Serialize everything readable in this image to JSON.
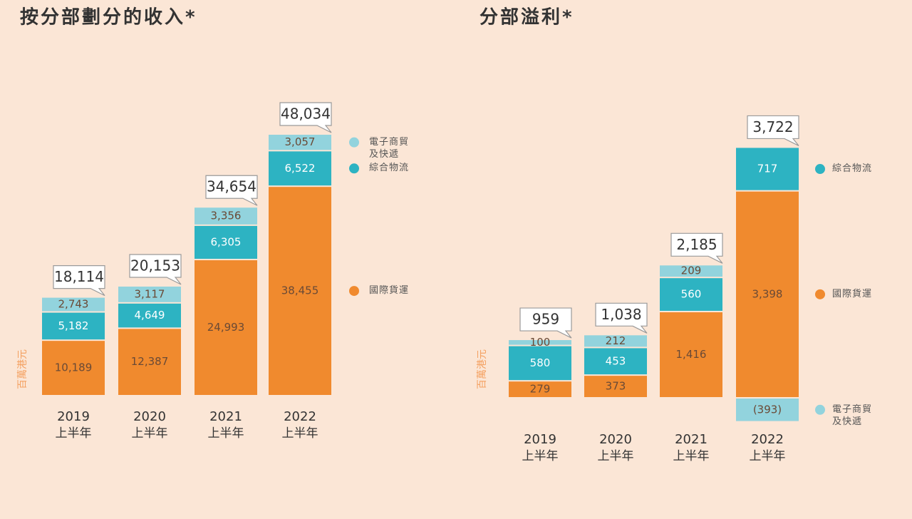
{
  "chart_data": [
    {
      "type": "stacked-bar",
      "title": "按分部劃分的收入*",
      "y_label": "百萬港元",
      "categories": [
        [
          "2019",
          "上半年"
        ],
        [
          "2020",
          "上半年"
        ],
        [
          "2021",
          "上半年"
        ],
        [
          "2022",
          "上半年"
        ]
      ],
      "series": [
        {
          "name": "國際貨運",
          "color": "#f08a2e",
          "values": [
            10189,
            12387,
            24993,
            38455
          ],
          "value_labels": [
            "10,189",
            "12,387",
            "24,993",
            "38,455"
          ]
        },
        {
          "name": "綜合物流",
          "color": "#2db3c2",
          "values": [
            5182,
            4649,
            6305,
            6522
          ],
          "value_labels": [
            "5,182",
            "4,649",
            "6,305",
            "6,522"
          ]
        },
        {
          "name": "電子商貿及快遞",
          "color": "#92d3dd",
          "values": [
            2743,
            3117,
            3356,
            3057
          ],
          "value_labels": [
            "2,743",
            "3,117",
            "3,356",
            "3,057"
          ]
        }
      ],
      "totals": [
        18114,
        20153,
        34654,
        48034
      ],
      "total_labels": [
        "18,114",
        "20,153",
        "34,654",
        "48,034"
      ]
    },
    {
      "type": "stacked-bar",
      "title": "分部溢利*",
      "y_label": "百萬港元",
      "categories": [
        [
          "2019",
          "上半年"
        ],
        [
          "2020",
          "上半年"
        ],
        [
          "2021",
          "上半年"
        ],
        [
          "2022",
          "上半年"
        ]
      ],
      "series": [
        {
          "name": "國際貨運",
          "color": "#f08a2e",
          "values": [
            279,
            373,
            1416,
            3398
          ],
          "value_labels": [
            "279",
            "373",
            "1,416",
            "3,398"
          ]
        },
        {
          "name": "綜合物流",
          "color": "#2db3c2",
          "values": [
            580,
            453,
            560,
            717
          ]
        },
        {
          "name": "電子商貿及快遞",
          "color": "#92d3dd",
          "values": [
            100,
            212,
            209,
            -393
          ],
          "value_labels": [
            "100",
            "212",
            "209",
            "(393)"
          ]
        }
      ],
      "totals": [
        959,
        1038,
        2185,
        3722
      ],
      "total_labels": [
        "959",
        "1,038",
        "2,185",
        "3,722"
      ]
    }
  ]
}
